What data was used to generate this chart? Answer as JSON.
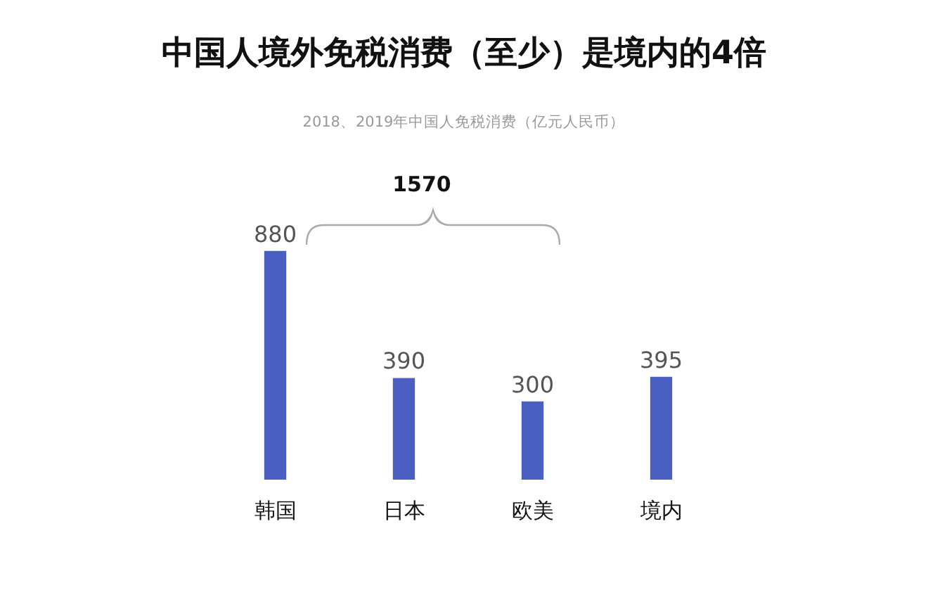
{
  "chart_data": {
    "type": "bar",
    "title": "中国人境外免税消费（至少）是境内的4倍",
    "subtitle": "2018、2019年中国人免税消费（亿元人民币）",
    "categories": [
      "韩国",
      "日本",
      "欧美",
      "境内"
    ],
    "values": [
      880,
      390,
      300,
      395
    ],
    "color": "#4a5fc1",
    "data_labels": true,
    "grid": false,
    "legend": false,
    "annotations": [
      "1570"
    ]
  }
}
